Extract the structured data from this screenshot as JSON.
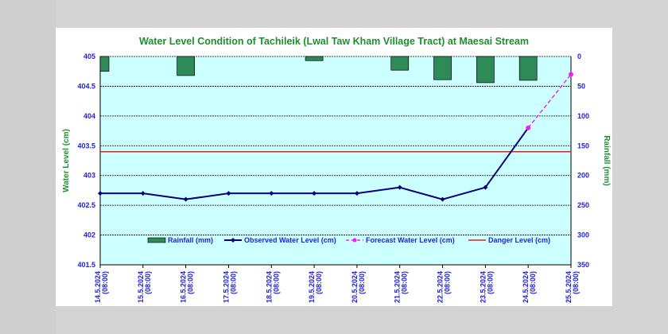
{
  "chart_data": {
    "type": "bar+line",
    "title": "Water Level Condition of Tachileik (Lwal Taw Kham Village Tract) at Maesai Stream",
    "ylabel": "Water Level (cm)",
    "y2label": "Rainfall (mm)",
    "ylim": [
      401.5,
      405
    ],
    "y2lim": [
      350,
      0
    ],
    "yticks": [
      "401.5",
      "402",
      "402.5",
      "403",
      "403.5",
      "404",
      "404.5",
      "405"
    ],
    "y2ticks": [
      "350",
      "300",
      "250",
      "200",
      "150",
      "100",
      "50",
      "0"
    ],
    "categories": [
      "14.5.2024",
      "15.5.2024",
      "16.5.2024",
      "17.5.2024",
      "18.5.2024",
      "19.5.2024",
      "20.5.2024",
      "21.5.2024",
      "22.5.2024",
      "23.5.2024",
      "24.5.2024",
      "25.5.2024"
    ],
    "time_label": "(08:00)",
    "series": [
      {
        "name": "Rainfall (mm)",
        "type": "bar",
        "axis": "right",
        "color": "#2e8b57",
        "values": [
          25,
          0,
          32,
          0,
          0,
          7,
          0,
          23,
          39,
          44,
          40,
          null
        ]
      },
      {
        "name": "Observed Water Level (cm)",
        "type": "line",
        "color": "#000080",
        "values": [
          402.7,
          402.7,
          402.6,
          402.7,
          402.7,
          402.7,
          402.7,
          402.8,
          402.6,
          402.8,
          403.8,
          null
        ]
      },
      {
        "name": "Forecast Water Level (cm)",
        "type": "line-dashed",
        "color": "#ee22ee",
        "values": [
          null,
          null,
          null,
          null,
          null,
          null,
          null,
          null,
          null,
          null,
          403.8,
          404.7
        ]
      },
      {
        "name": "Danger Level (cm)",
        "type": "hline",
        "color": "#dd2222",
        "value": 403.4
      }
    ],
    "legend_position": "bottom-inside",
    "grid": true
  }
}
